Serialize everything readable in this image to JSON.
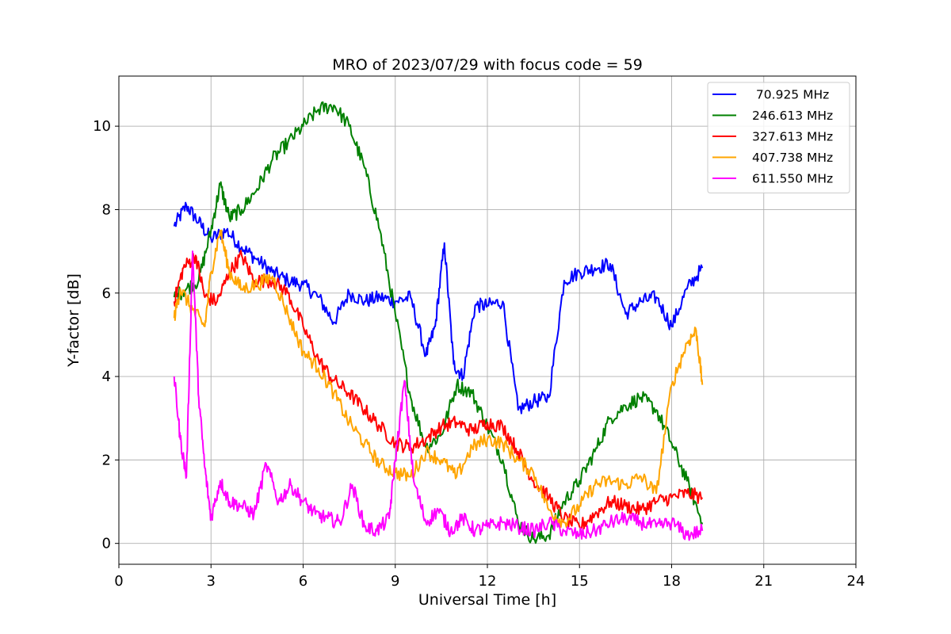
{
  "chart_data": {
    "type": "line",
    "title": "MRO of 2023/07/29 with focus code = 59",
    "xlabel": "Universal Time [h]",
    "ylabel": "Y-factor [dB]",
    "xlim": [
      0,
      24
    ],
    "ylim": [
      -0.5,
      11.2
    ],
    "xticks": [
      0,
      3,
      6,
      9,
      12,
      15,
      18,
      21,
      24
    ],
    "yticks": [
      0,
      2,
      4,
      6,
      8,
      10
    ],
    "grid": true,
    "legend_position": "top-right",
    "series": [
      {
        "name": " 70.925 MHz",
        "color": "#0000ff",
        "x": [
          1.8,
          2.2,
          2.6,
          3.0,
          3.5,
          4.0,
          4.5,
          5.0,
          5.5,
          6.0,
          6.5,
          7.0,
          7.5,
          8.0,
          8.5,
          9.0,
          9.5,
          10.0,
          10.3,
          10.6,
          10.9,
          11.2,
          11.6,
          12.0,
          12.5,
          13.0,
          13.5,
          14.0,
          14.5,
          15.0,
          15.5,
          16.0,
          16.5,
          17.0,
          17.5,
          18.0,
          18.5,
          19.0
        ],
        "y": [
          7.6,
          8.1,
          7.7,
          7.3,
          7.5,
          7.1,
          6.8,
          6.5,
          6.3,
          6.2,
          5.9,
          5.3,
          6.0,
          5.8,
          5.9,
          5.8,
          5.9,
          4.5,
          5.2,
          7.2,
          4.3,
          4.0,
          5.7,
          5.7,
          5.8,
          3.2,
          3.4,
          3.5,
          6.3,
          6.5,
          6.6,
          6.7,
          5.5,
          5.8,
          5.9,
          5.2,
          6.1,
          6.6
        ]
      },
      {
        "name": "246.613 MHz",
        "color": "#008000",
        "x": [
          1.8,
          2.2,
          2.6,
          3.0,
          3.3,
          3.6,
          4.0,
          4.5,
          5.0,
          5.5,
          6.0,
          6.5,
          7.0,
          7.5,
          8.0,
          8.5,
          9.0,
          9.5,
          10.0,
          10.5,
          11.0,
          11.5,
          12.0,
          12.5,
          13.0,
          13.5,
          14.0,
          14.5,
          15.0,
          15.5,
          16.0,
          16.5,
          17.0,
          17.5,
          18.0,
          18.5,
          19.0
        ],
        "y": [
          5.9,
          6.1,
          6.3,
          7.5,
          8.6,
          7.8,
          8.0,
          8.5,
          9.2,
          9.6,
          10.0,
          10.4,
          10.5,
          10.0,
          9.0,
          7.5,
          5.5,
          3.5,
          2.3,
          2.6,
          3.8,
          3.6,
          2.8,
          2.0,
          0.5,
          0.1,
          0.2,
          1.0,
          1.5,
          2.2,
          3.0,
          3.3,
          3.5,
          3.2,
          2.4,
          1.5,
          0.5
        ]
      },
      {
        "name": "327.613 MHz",
        "color": "#ff0000",
        "x": [
          1.8,
          2.1,
          2.5,
          2.8,
          3.2,
          3.6,
          4.0,
          4.4,
          5.0,
          5.5,
          6.0,
          6.5,
          7.0,
          7.5,
          8.0,
          8.5,
          9.0,
          9.5,
          10.0,
          10.5,
          11.0,
          11.5,
          12.0,
          12.5,
          13.0,
          13.5,
          14.0,
          14.5,
          15.0,
          15.5,
          16.0,
          16.5,
          17.0,
          17.5,
          18.0,
          18.5,
          19.0
        ],
        "y": [
          5.8,
          6.6,
          6.9,
          5.9,
          5.8,
          6.5,
          6.9,
          6.3,
          6.3,
          6.0,
          5.2,
          4.4,
          3.9,
          3.6,
          3.2,
          2.8,
          2.4,
          2.3,
          2.5,
          2.8,
          2.9,
          2.7,
          2.9,
          2.8,
          2.2,
          1.5,
          1.1,
          0.6,
          0.4,
          0.7,
          1.0,
          0.9,
          0.8,
          1.0,
          1.1,
          1.2,
          1.1
        ]
      },
      {
        "name": "407.738 MHz",
        "color": "#ffa500",
        "x": [
          1.8,
          2.0,
          2.4,
          2.8,
          3.0,
          3.3,
          3.6,
          4.0,
          4.5,
          5.0,
          5.5,
          6.0,
          6.5,
          7.0,
          7.5,
          8.0,
          8.5,
          9.0,
          9.5,
          10.0,
          10.5,
          11.0,
          11.5,
          12.0,
          12.5,
          13.0,
          13.5,
          14.0,
          14.5,
          15.0,
          15.5,
          16.0,
          16.5,
          17.0,
          17.5,
          18.0,
          18.5,
          18.8,
          19.0
        ],
        "y": [
          5.4,
          6.1,
          5.6,
          5.2,
          6.5,
          7.5,
          6.5,
          6.1,
          6.2,
          6.4,
          5.5,
          4.6,
          4.2,
          3.6,
          2.9,
          2.4,
          1.9,
          1.7,
          1.6,
          2.2,
          2.0,
          1.6,
          2.3,
          2.5,
          2.4,
          2.0,
          1.7,
          0.8,
          0.5,
          0.9,
          1.4,
          1.5,
          1.4,
          1.6,
          1.2,
          3.8,
          4.8,
          5.1,
          3.8
        ]
      },
      {
        "name": "611.550 MHz",
        "color": "#ff00ff",
        "x": [
          1.8,
          2.0,
          2.2,
          2.4,
          2.6,
          2.8,
          3.0,
          3.3,
          3.6,
          4.0,
          4.4,
          4.8,
          5.2,
          5.6,
          6.0,
          6.4,
          6.8,
          7.2,
          7.6,
          8.0,
          8.4,
          8.8,
          9.0,
          9.3,
          9.6,
          10.0,
          10.4,
          10.8,
          11.2,
          11.6,
          12.0,
          12.5,
          13.0,
          13.5,
          14.0,
          14.5,
          15.0,
          15.5,
          16.0,
          16.5,
          17.0,
          17.5,
          18.0,
          18.5,
          19.0
        ],
        "y": [
          4.0,
          2.5,
          1.6,
          7.0,
          3.5,
          1.8,
          0.6,
          1.5,
          1.0,
          0.9,
          0.7,
          1.9,
          1.0,
          1.4,
          1.0,
          0.7,
          0.6,
          0.5,
          1.4,
          0.4,
          0.3,
          0.6,
          2.0,
          3.9,
          1.5,
          0.5,
          0.8,
          0.3,
          0.6,
          0.3,
          0.4,
          0.5,
          0.4,
          0.3,
          0.5,
          0.3,
          0.2,
          0.3,
          0.5,
          0.6,
          0.5,
          0.4,
          0.5,
          0.2,
          0.3
        ]
      }
    ]
  }
}
